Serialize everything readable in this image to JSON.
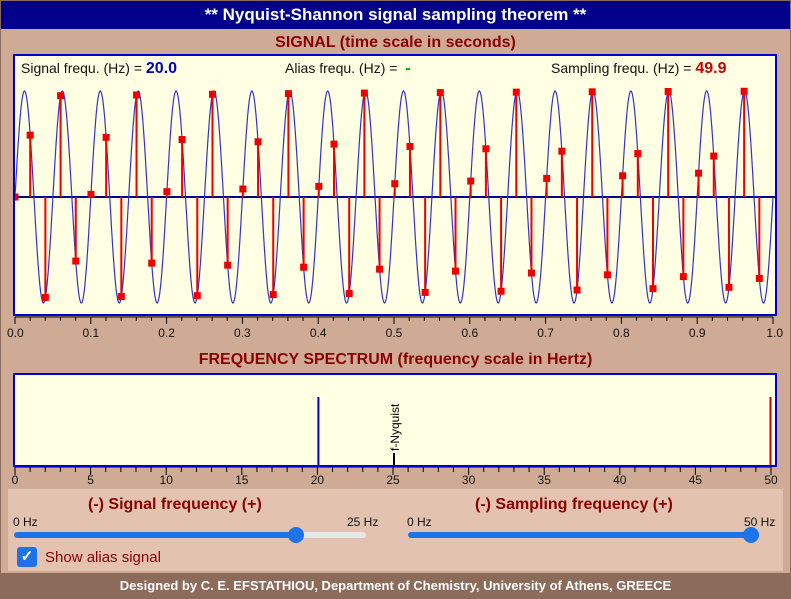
{
  "app": {
    "title": "** Nyquist-Shannon signal sampling theorem  **",
    "footer": "Designed by C. E. EFSTATHIOU, Department of Chemistry, University of Athens, GREECE"
  },
  "signal_panel": {
    "section_title": "SIGNAL (time scale in seconds)",
    "signal_freq_label": "Signal frequ. (Hz) =",
    "signal_freq_value": "20.0",
    "alias_freq_label": "Alias frequ. (Hz) =",
    "alias_freq_value": "-",
    "sampling_freq_label": "Sampling frequ. (Hz) =",
    "sampling_freq_value": "49.9",
    "x_ticks": [
      "0.0",
      "0.1",
      "0.2",
      "0.3",
      "0.4",
      "0.5",
      "0.6",
      "0.7",
      "0.8",
      "0.9",
      "1.0"
    ]
  },
  "spectrum_panel": {
    "section_title": "FREQUENCY SPECTRUM (frequency scale in Hertz)",
    "nyquist_label": "f-Nyquist",
    "x_ticks": [
      "0",
      "5",
      "10",
      "15",
      "20",
      "25",
      "30",
      "35",
      "40",
      "45",
      "50"
    ]
  },
  "controls": {
    "signal": {
      "title": "(-)  Signal frequency  (+)",
      "min_label": "0 Hz",
      "max_label": "25 Hz",
      "level_fraction": 0.8
    },
    "sampling": {
      "title": "(-)  Sampling frequency  (+)",
      "min_label": "0 Hz",
      "max_label": "50 Hz",
      "level_fraction": 1.0
    },
    "alias_checkbox": {
      "label": "Show alias signal",
      "checked": true
    }
  },
  "chart_data": [
    {
      "type": "line",
      "description_source": "signal plot",
      "signal_frequency_hz": 20.0,
      "sampling_frequency_hz": 49.9,
      "xlim": [
        0,
        1
      ],
      "ylim": [
        -1,
        1
      ],
      "series": [
        {
          "kind": "continuous-signal",
          "color": "#3333cc"
        },
        {
          "kind": "samples",
          "color": "#ee0000"
        }
      ]
    },
    {
      "type": "bar",
      "description_source": "frequency spectrum",
      "xlim": [
        0,
        50
      ],
      "bars": [
        {
          "x": 20,
          "color": "#0000cc"
        },
        {
          "x": 25,
          "color": "#000000",
          "label": "f-Nyquist"
        },
        {
          "x": 49.9,
          "color": "#cc0000"
        }
      ]
    }
  ],
  "colors": {
    "title_bg": "#00008b",
    "app_bg": "#cfab96",
    "panel_bg": "#ffffe4",
    "panel_border": "#0000cc",
    "section_title": "#8b0000",
    "slider": "#1e73e8",
    "footer_bg": "#8c6b5b"
  }
}
